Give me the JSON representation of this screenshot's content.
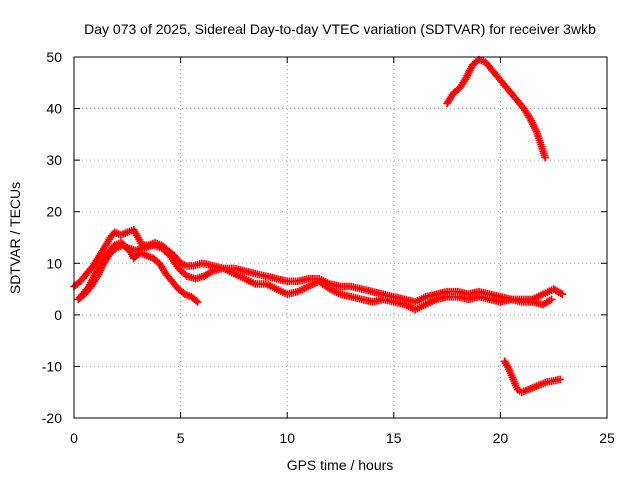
{
  "chart_data": {
    "type": "scatter",
    "title": "Day 073 of 2025, Sidereal Day-to-day VTEC variation (SDTVAR) for receiver 3wkb",
    "xlabel": "GPS time / hours",
    "ylabel": "SDTVAR / TECUs",
    "xlim": [
      0,
      25
    ],
    "ylim": [
      -20,
      50
    ],
    "xticks": [
      0,
      5,
      10,
      15,
      20,
      25
    ],
    "yticks": [
      -20,
      -10,
      0,
      10,
      20,
      30,
      40,
      50
    ],
    "grid": true,
    "marker": "+",
    "color": "#ff0000",
    "series": [
      {
        "name": "track-1",
        "points": [
          [
            0.0,
            5.5
          ],
          [
            0.3,
            6.5
          ],
          [
            0.6,
            8.0
          ],
          [
            0.9,
            9.5
          ],
          [
            1.2,
            11.5
          ],
          [
            1.5,
            13.5
          ],
          [
            1.7,
            15.0
          ],
          [
            1.9,
            16.0
          ],
          [
            2.2,
            15.5
          ],
          [
            2.5,
            16.0
          ],
          [
            2.8,
            16.5
          ],
          [
            3.0,
            15.0
          ],
          [
            3.2,
            13.5
          ],
          [
            3.5,
            13.5
          ],
          [
            3.8,
            14.0
          ],
          [
            4.1,
            13.5
          ],
          [
            4.4,
            12.5
          ],
          [
            4.7,
            11.5
          ],
          [
            5.0,
            10.0
          ],
          [
            5.3,
            9.5
          ],
          [
            5.6,
            9.5
          ],
          [
            6.0,
            10.0
          ],
          [
            6.5,
            9.5
          ],
          [
            7.0,
            9.0
          ],
          [
            7.5,
            9.0
          ],
          [
            8.0,
            8.5
          ],
          [
            8.5,
            8.0
          ],
          [
            9.0,
            7.5
          ],
          [
            9.5,
            7.0
          ],
          [
            10.0,
            6.5
          ],
          [
            10.5,
            6.5
          ],
          [
            11.0,
            7.0
          ],
          [
            11.5,
            7.0
          ],
          [
            12.0,
            6.0
          ],
          [
            12.5,
            5.5
          ],
          [
            13.0,
            5.5
          ],
          [
            13.5,
            5.0
          ],
          [
            14.0,
            4.5
          ],
          [
            14.5,
            4.0
          ],
          [
            15.0,
            3.5
          ],
          [
            15.5,
            3.0
          ],
          [
            16.0,
            2.5
          ],
          [
            16.5,
            3.5
          ],
          [
            17.0,
            4.0
          ],
          [
            17.5,
            4.5
          ],
          [
            18.0,
            4.5
          ],
          [
            18.5,
            4.0
          ],
          [
            19.0,
            4.5
          ],
          [
            19.5,
            4.0
          ],
          [
            20.0,
            3.5
          ],
          [
            20.5,
            3.0
          ],
          [
            21.0,
            3.0
          ],
          [
            21.5,
            3.0
          ],
          [
            22.0,
            4.0
          ],
          [
            22.5,
            5.0
          ],
          [
            22.9,
            4.0
          ]
        ]
      },
      {
        "name": "track-2",
        "points": [
          [
            0.2,
            3.0
          ],
          [
            0.5,
            4.0
          ],
          [
            0.8,
            5.5
          ],
          [
            1.1,
            7.5
          ],
          [
            1.4,
            10.0
          ],
          [
            1.7,
            12.0
          ],
          [
            2.0,
            13.0
          ],
          [
            2.3,
            13.5
          ],
          [
            2.6,
            12.5
          ],
          [
            2.8,
            11.0
          ],
          [
            3.1,
            12.0
          ],
          [
            3.4,
            11.5
          ],
          [
            3.7,
            11.0
          ],
          [
            4.0,
            10.0
          ],
          [
            4.3,
            8.0
          ],
          [
            4.6,
            6.5
          ],
          [
            4.9,
            5.0
          ],
          [
            5.2,
            4.0
          ],
          [
            5.5,
            3.5
          ],
          [
            5.8,
            2.5
          ]
        ]
      },
      {
        "name": "track-3",
        "points": [
          [
            0.3,
            3.5
          ],
          [
            0.7,
            5.5
          ],
          [
            1.0,
            8.0
          ],
          [
            1.3,
            10.0
          ],
          [
            1.6,
            12.0
          ],
          [
            1.9,
            13.5
          ],
          [
            2.2,
            14.0
          ],
          [
            2.5,
            13.0
          ],
          [
            2.9,
            12.5
          ],
          [
            3.3,
            13.0
          ],
          [
            3.7,
            13.5
          ],
          [
            4.1,
            13.0
          ],
          [
            4.5,
            11.5
          ],
          [
            4.9,
            9.0
          ],
          [
            5.3,
            7.5
          ],
          [
            5.7,
            7.0
          ],
          [
            6.1,
            7.5
          ],
          [
            6.5,
            8.5
          ],
          [
            7.0,
            9.0
          ],
          [
            7.5,
            8.0
          ],
          [
            8.0,
            7.0
          ],
          [
            8.5,
            6.0
          ],
          [
            9.0,
            6.0
          ],
          [
            9.5,
            5.0
          ],
          [
            10.0,
            4.0
          ],
          [
            10.5,
            4.5
          ],
          [
            11.0,
            5.5
          ],
          [
            11.5,
            6.5
          ],
          [
            12.0,
            5.0
          ],
          [
            12.5,
            4.0
          ],
          [
            13.0,
            3.5
          ],
          [
            13.5,
            3.0
          ],
          [
            14.0,
            2.5
          ],
          [
            14.5,
            3.0
          ],
          [
            15.0,
            2.5
          ],
          [
            15.5,
            2.0
          ],
          [
            16.0,
            1.0
          ],
          [
            16.5,
            2.0
          ],
          [
            17.0,
            3.0
          ],
          [
            17.5,
            3.5
          ],
          [
            18.0,
            3.5
          ],
          [
            18.5,
            3.0
          ],
          [
            19.0,
            3.5
          ],
          [
            19.5,
            3.0
          ],
          [
            20.0,
            2.5
          ],
          [
            20.5,
            3.0
          ],
          [
            21.0,
            2.5
          ],
          [
            21.5,
            2.5
          ],
          [
            22.0,
            2.0
          ],
          [
            22.4,
            3.0
          ]
        ]
      },
      {
        "name": "track-4",
        "points": [
          [
            17.5,
            41.0
          ],
          [
            17.8,
            43.0
          ],
          [
            18.1,
            44.0
          ],
          [
            18.4,
            46.0
          ],
          [
            18.7,
            48.5
          ],
          [
            19.0,
            49.5
          ],
          [
            19.3,
            49.0
          ],
          [
            19.6,
            47.5
          ],
          [
            19.9,
            46.0
          ],
          [
            20.2,
            44.5
          ],
          [
            20.5,
            43.0
          ],
          [
            20.8,
            41.5
          ],
          [
            21.1,
            40.0
          ],
          [
            21.4,
            38.0
          ],
          [
            21.7,
            35.5
          ],
          [
            21.9,
            33.0
          ],
          [
            22.1,
            30.5
          ]
        ]
      },
      {
        "name": "track-5",
        "points": [
          [
            20.2,
            -9.0
          ],
          [
            20.4,
            -10.5
          ],
          [
            20.6,
            -12.5
          ],
          [
            20.8,
            -14.5
          ],
          [
            21.0,
            -15.0
          ],
          [
            21.3,
            -14.5
          ],
          [
            21.6,
            -14.0
          ],
          [
            21.9,
            -13.5
          ],
          [
            22.2,
            -13.0
          ],
          [
            22.5,
            -12.8
          ],
          [
            22.8,
            -12.5
          ]
        ]
      }
    ]
  }
}
